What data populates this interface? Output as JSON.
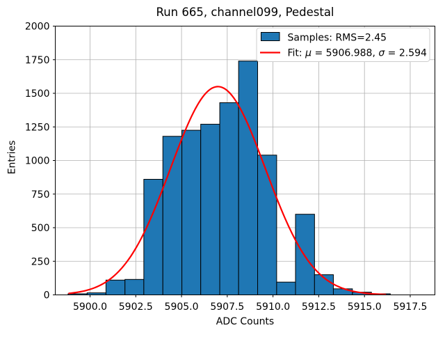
{
  "window": {
    "background": "#ffffff"
  },
  "chart_data": {
    "type": "histogram",
    "title": "Run 665, channel099, Pedestal",
    "xlabel": "ADC Counts",
    "ylabel": "Entries",
    "xlim": [
      5898.1,
      5918.85
    ],
    "ylim": [
      0,
      2000
    ],
    "grid": true,
    "grid_color": "#b0b0b0",
    "x_ticks": {
      "values": [
        5900.0,
        5902.5,
        5905.0,
        5907.5,
        5910.0,
        5912.5,
        5915.0,
        5917.5
      ],
      "labels": [
        "5900.0",
        "5902.5",
        "5905.0",
        "5907.5",
        "5910.0",
        "5912.5",
        "5915.0",
        "5917.5"
      ]
    },
    "y_ticks": {
      "values": [
        0,
        250,
        500,
        750,
        1000,
        1250,
        1500,
        1750,
        2000
      ],
      "labels": [
        "0",
        "250",
        "500",
        "750",
        "1000",
        "1250",
        "1500",
        "1750",
        "2000"
      ]
    },
    "series": [
      {
        "name": "Samples",
        "type": "histogram-bars",
        "legend_label": "Samples: RMS=2.45",
        "rms": 2.45,
        "fill_color": "#1f77b4",
        "edge_color": "#000000",
        "bin_edges": [
          5898.8,
          5899.84,
          5900.87,
          5901.91,
          5902.94,
          5903.98,
          5905.02,
          5906.05,
          5907.09,
          5908.12,
          5909.16,
          5910.2,
          5911.23,
          5912.27,
          5913.3,
          5914.34,
          5915.38,
          5916.41
        ],
        "counts": [
          8,
          15,
          110,
          115,
          860,
          1180,
          1225,
          1270,
          1430,
          1740,
          1040,
          95,
          600,
          150,
          45,
          20,
          8
        ]
      },
      {
        "name": "Fit",
        "type": "gaussian-curve",
        "legend_label": "Fit: μ = 5906.988, σ = 2.594",
        "legend_label_parts": [
          {
            "text": "Fit: ",
            "italic": false
          },
          {
            "text": "μ",
            "italic": true
          },
          {
            "text": " = 5906.988, ",
            "italic": false
          },
          {
            "text": "σ",
            "italic": true
          },
          {
            "text": " = 2.594",
            "italic": false
          }
        ],
        "mu": 5906.988,
        "sigma": 2.594,
        "peak_value": 1550,
        "x_range": [
          5898.85,
          5916.15
        ],
        "color": "#ff0000"
      }
    ],
    "legend": {
      "position": "upper-right",
      "border_color": "#cccccc",
      "background": "#ffffff"
    }
  }
}
